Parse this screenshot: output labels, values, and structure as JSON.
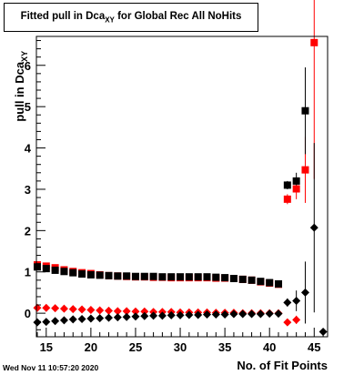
{
  "title": {
    "main": "Fitted pull in Dca",
    "subscript": "XY",
    "rest": " for Global Rec All NoHits"
  },
  "footer": {
    "timestamp": "Wed Nov 11 10:57:20 2020"
  },
  "chart_data": {
    "type": "scatter",
    "title": "Fitted pull in Dca_XY for Global Rec All NoHits",
    "xlabel": "No. of Fit Points",
    "ylabel": "pull in Dca_XY",
    "ylabel_main": "pull in Dca",
    "ylabel_sub": "XY",
    "xlim": [
      13.9,
      46.5
    ],
    "ylim": [
      -0.57,
      6.7
    ],
    "x_ticks": [
      15,
      20,
      25,
      30,
      35,
      40,
      45
    ],
    "y_ticks": [
      0,
      1,
      2,
      3,
      4,
      5,
      6
    ],
    "grid": false,
    "legend": "none",
    "series": [
      {
        "marker": "square",
        "color": "#ff0000",
        "points": [
          [
            14,
            1.17
          ],
          [
            15,
            1.14
          ],
          [
            16,
            1.1
          ],
          [
            17,
            1.05
          ],
          [
            18,
            1.01
          ],
          [
            19,
            0.98
          ],
          [
            20,
            0.96
          ],
          [
            21,
            0.93
          ],
          [
            22,
            0.91
          ],
          [
            23,
            0.9
          ],
          [
            24,
            0.89
          ],
          [
            25,
            0.88
          ],
          [
            26,
            0.88
          ],
          [
            27,
            0.87
          ],
          [
            28,
            0.87
          ],
          [
            29,
            0.86
          ],
          [
            30,
            0.86
          ],
          [
            31,
            0.86
          ],
          [
            32,
            0.86
          ],
          [
            33,
            0.86
          ],
          [
            34,
            0.85
          ],
          [
            35,
            0.85
          ],
          [
            36,
            0.84
          ],
          [
            37,
            0.82
          ],
          [
            38,
            0.8
          ],
          [
            39,
            0.76
          ],
          [
            40,
            0.73
          ],
          [
            41,
            0.7
          ],
          [
            42,
            2.76
          ],
          [
            43,
            3.01
          ],
          [
            44,
            3.47
          ],
          [
            45,
            6.55
          ]
        ],
        "errors": [
          0,
          0,
          0,
          0,
          0,
          0,
          0,
          0,
          0,
          0,
          0,
          0,
          0,
          0,
          0,
          0,
          0,
          0,
          0,
          0,
          0,
          0,
          0,
          0,
          0,
          0,
          0,
          0,
          0.12,
          0.25,
          0.8,
          3.3
        ]
      },
      {
        "marker": "square",
        "color": "#000000",
        "points": [
          [
            14,
            1.12
          ],
          [
            15,
            1.08
          ],
          [
            16,
            1.04
          ],
          [
            17,
            1.01
          ],
          [
            18,
            0.98
          ],
          [
            19,
            0.95
          ],
          [
            20,
            0.93
          ],
          [
            21,
            0.92
          ],
          [
            22,
            0.91
          ],
          [
            23,
            0.9
          ],
          [
            24,
            0.9
          ],
          [
            25,
            0.89
          ],
          [
            26,
            0.89
          ],
          [
            27,
            0.89
          ],
          [
            28,
            0.88
          ],
          [
            29,
            0.88
          ],
          [
            30,
            0.88
          ],
          [
            31,
            0.88
          ],
          [
            32,
            0.88
          ],
          [
            33,
            0.88
          ],
          [
            34,
            0.87
          ],
          [
            35,
            0.86
          ],
          [
            36,
            0.84
          ],
          [
            37,
            0.82
          ],
          [
            38,
            0.8
          ],
          [
            39,
            0.77
          ],
          [
            40,
            0.74
          ],
          [
            41,
            0.71
          ],
          [
            42,
            3.1
          ],
          [
            43,
            3.2
          ],
          [
            44,
            4.9
          ]
        ],
        "errors": [
          0,
          0,
          0,
          0,
          0,
          0,
          0,
          0,
          0,
          0,
          0,
          0,
          0,
          0,
          0,
          0,
          0,
          0,
          0,
          0,
          0,
          0,
          0,
          0,
          0,
          0,
          0,
          0,
          0.1,
          0.2,
          1.05
        ]
      },
      {
        "marker": "diamond",
        "color": "#ff0000",
        "points": [
          [
            14,
            0.13
          ],
          [
            15,
            0.13
          ],
          [
            16,
            0.12
          ],
          [
            17,
            0.11
          ],
          [
            18,
            0.1
          ],
          [
            19,
            0.09
          ],
          [
            20,
            0.08
          ],
          [
            21,
            0.07
          ],
          [
            22,
            0.06
          ],
          [
            23,
            0.05
          ],
          [
            24,
            0.05
          ],
          [
            25,
            0.04
          ],
          [
            26,
            0.04
          ],
          [
            27,
            0.03
          ],
          [
            28,
            0.03
          ],
          [
            29,
            0.03
          ],
          [
            30,
            0.02
          ],
          [
            31,
            0.02
          ],
          [
            32,
            0.02
          ],
          [
            33,
            0.02
          ],
          [
            34,
            0.01
          ],
          [
            35,
            0.01
          ],
          [
            36,
            0.01
          ],
          [
            37,
            0.0
          ],
          [
            38,
            0.0
          ],
          [
            39,
            0.0
          ],
          [
            40,
            0.0
          ],
          [
            41,
            0.0
          ],
          [
            42,
            -0.22
          ],
          [
            43,
            -0.16
          ]
        ],
        "errors": [
          0,
          0,
          0,
          0,
          0,
          0,
          0,
          0,
          0,
          0,
          0,
          0,
          0,
          0,
          0,
          0,
          0,
          0,
          0,
          0,
          0,
          0,
          0,
          0,
          0,
          0,
          0,
          0,
          0.05,
          0.1
        ]
      },
      {
        "marker": "diamond",
        "color": "#000000",
        "points": [
          [
            14,
            -0.22
          ],
          [
            15,
            -0.21
          ],
          [
            16,
            -0.19
          ],
          [
            17,
            -0.17
          ],
          [
            18,
            -0.15
          ],
          [
            19,
            -0.14
          ],
          [
            20,
            -0.13
          ],
          [
            21,
            -0.12
          ],
          [
            22,
            -0.11
          ],
          [
            23,
            -0.1
          ],
          [
            24,
            -0.09
          ],
          [
            25,
            -0.08
          ],
          [
            26,
            -0.07
          ],
          [
            27,
            -0.06
          ],
          [
            28,
            -0.06
          ],
          [
            29,
            -0.05
          ],
          [
            30,
            -0.05
          ],
          [
            31,
            -0.04
          ],
          [
            32,
            -0.04
          ],
          [
            33,
            -0.03
          ],
          [
            34,
            -0.03
          ],
          [
            35,
            -0.03
          ],
          [
            36,
            -0.02
          ],
          [
            37,
            -0.02
          ],
          [
            38,
            -0.02
          ],
          [
            39,
            -0.02
          ],
          [
            40,
            -0.01
          ],
          [
            41,
            -0.01
          ],
          [
            42,
            0.26
          ],
          [
            43,
            0.3
          ],
          [
            44,
            0.5
          ],
          [
            45,
            2.07
          ],
          [
            46,
            -0.45
          ]
        ],
        "errors": [
          0,
          0,
          0,
          0,
          0,
          0,
          0,
          0,
          0,
          0,
          0,
          0,
          0,
          0,
          0,
          0,
          0,
          0,
          0,
          0,
          0,
          0,
          0,
          0,
          0,
          0,
          0,
          0,
          0.1,
          0.25,
          0.75,
          2.05,
          0
        ]
      }
    ]
  }
}
